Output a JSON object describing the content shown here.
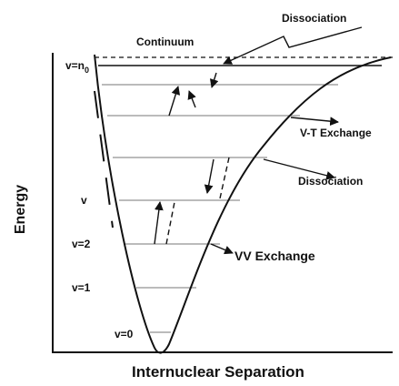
{
  "axes": {
    "y_label": "Energy",
    "x_label": "Internuclear Separation"
  },
  "annotations": {
    "continuum": "Continuum",
    "dissociation_top": "Dissociation",
    "vt_exchange": "V-T Exchange",
    "dissociation_mid": "Dissociation",
    "vv_exchange": "VV Exchange"
  },
  "levels": {
    "v_n0": {
      "text": "v=n",
      "subscript": "0"
    },
    "v": "v",
    "v2": "v=2",
    "v1": "v=1",
    "v0": "v=0"
  }
}
